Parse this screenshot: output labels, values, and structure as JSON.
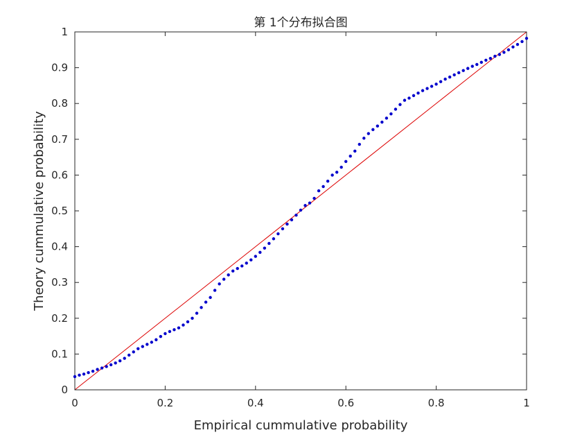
{
  "chart_data": {
    "type": "scatter",
    "title": "第 1个分布拟合图",
    "xlabel": "Empirical cummulative probability",
    "ylabel": "Theory cummulative probability",
    "xlim": [
      0,
      1
    ],
    "ylim": [
      0,
      1
    ],
    "xticks": [
      "0",
      "0.2",
      "0.4",
      "0.6",
      "0.8",
      "1"
    ],
    "yticks": [
      "0",
      "0.1",
      "0.2",
      "0.3",
      "0.4",
      "0.5",
      "0.6",
      "0.7",
      "0.8",
      "0.9",
      "1"
    ],
    "grid": false,
    "series": [
      {
        "color": "#0000cc",
        "marker": "dot",
        "points": [
          [
            0.0,
            0.037
          ],
          [
            0.01,
            0.041
          ],
          [
            0.02,
            0.044
          ],
          [
            0.03,
            0.048
          ],
          [
            0.04,
            0.052
          ],
          [
            0.05,
            0.057
          ],
          [
            0.06,
            0.061
          ],
          [
            0.07,
            0.065
          ],
          [
            0.08,
            0.07
          ],
          [
            0.09,
            0.075
          ],
          [
            0.1,
            0.081
          ],
          [
            0.11,
            0.088
          ],
          [
            0.12,
            0.097
          ],
          [
            0.13,
            0.106
          ],
          [
            0.14,
            0.115
          ],
          [
            0.15,
            0.121
          ],
          [
            0.16,
            0.127
          ],
          [
            0.17,
            0.133
          ],
          [
            0.18,
            0.14
          ],
          [
            0.19,
            0.149
          ],
          [
            0.2,
            0.157
          ],
          [
            0.21,
            0.163
          ],
          [
            0.22,
            0.168
          ],
          [
            0.23,
            0.173
          ],
          [
            0.24,
            0.181
          ],
          [
            0.25,
            0.19
          ],
          [
            0.26,
            0.2
          ],
          [
            0.27,
            0.214
          ],
          [
            0.28,
            0.23
          ],
          [
            0.29,
            0.245
          ],
          [
            0.3,
            0.258
          ],
          [
            0.31,
            0.278
          ],
          [
            0.32,
            0.296
          ],
          [
            0.33,
            0.309
          ],
          [
            0.34,
            0.321
          ],
          [
            0.35,
            0.332
          ],
          [
            0.36,
            0.339
          ],
          [
            0.37,
            0.346
          ],
          [
            0.38,
            0.354
          ],
          [
            0.39,
            0.363
          ],
          [
            0.4,
            0.373
          ],
          [
            0.41,
            0.384
          ],
          [
            0.42,
            0.396
          ],
          [
            0.43,
            0.409
          ],
          [
            0.44,
            0.422
          ],
          [
            0.45,
            0.436
          ],
          [
            0.46,
            0.45
          ],
          [
            0.47,
            0.463
          ],
          [
            0.48,
            0.475
          ],
          [
            0.49,
            0.488
          ],
          [
            0.5,
            0.502
          ],
          [
            0.51,
            0.515
          ],
          [
            0.52,
            0.522
          ],
          [
            0.53,
            0.535
          ],
          [
            0.54,
            0.556
          ],
          [
            0.55,
            0.568
          ],
          [
            0.56,
            0.583
          ],
          [
            0.57,
            0.6
          ],
          [
            0.58,
            0.608
          ],
          [
            0.59,
            0.622
          ],
          [
            0.6,
            0.638
          ],
          [
            0.61,
            0.653
          ],
          [
            0.62,
            0.667
          ],
          [
            0.63,
            0.686
          ],
          [
            0.64,
            0.703
          ],
          [
            0.65,
            0.716
          ],
          [
            0.66,
            0.727
          ],
          [
            0.67,
            0.737
          ],
          [
            0.68,
            0.748
          ],
          [
            0.69,
            0.759
          ],
          [
            0.7,
            0.771
          ],
          [
            0.71,
            0.784
          ],
          [
            0.72,
            0.797
          ],
          [
            0.73,
            0.809
          ],
          [
            0.74,
            0.815
          ],
          [
            0.75,
            0.822
          ],
          [
            0.76,
            0.829
          ],
          [
            0.77,
            0.836
          ],
          [
            0.78,
            0.842
          ],
          [
            0.79,
            0.848
          ],
          [
            0.8,
            0.854
          ],
          [
            0.81,
            0.861
          ],
          [
            0.82,
            0.868
          ],
          [
            0.83,
            0.874
          ],
          [
            0.84,
            0.88
          ],
          [
            0.85,
            0.886
          ],
          [
            0.86,
            0.892
          ],
          [
            0.87,
            0.898
          ],
          [
            0.88,
            0.904
          ],
          [
            0.89,
            0.909
          ],
          [
            0.9,
            0.915
          ],
          [
            0.91,
            0.921
          ],
          [
            0.92,
            0.926
          ],
          [
            0.93,
            0.932
          ],
          [
            0.94,
            0.937
          ],
          [
            0.95,
            0.943
          ],
          [
            0.96,
            0.95
          ],
          [
            0.97,
            0.958
          ],
          [
            0.98,
            0.965
          ],
          [
            0.99,
            0.973
          ],
          [
            1.0,
            0.982
          ]
        ]
      }
    ],
    "reference_line": {
      "color": "#dd0000",
      "from": [
        0,
        0
      ],
      "to": [
        1,
        1
      ]
    }
  }
}
